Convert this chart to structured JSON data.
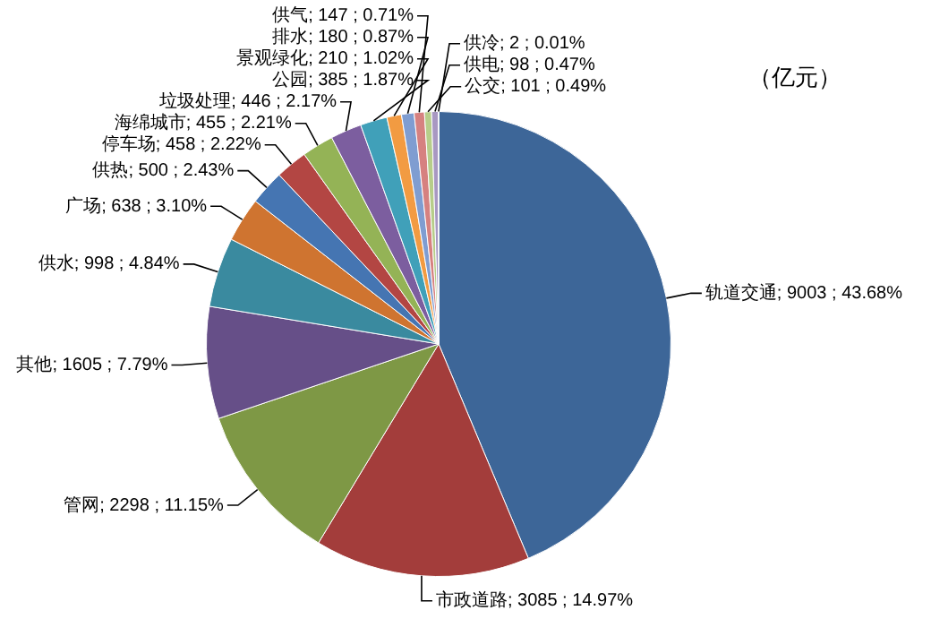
{
  "chart_data": {
    "type": "pie",
    "categories": [
      "轨道交通",
      "市政道路",
      "管网",
      "其他",
      "供水",
      "广场",
      "供热",
      "停车场",
      "海绵城市",
      "垃圾处理",
      "公园",
      "景观绿化",
      "排水",
      "供气",
      "公交",
      "供电",
      "供冷"
    ],
    "values": [
      9003,
      3085,
      2298,
      1605,
      998,
      638,
      500,
      458,
      455,
      446,
      385,
      210,
      180,
      147,
      101,
      98,
      2
    ],
    "value_labels": [
      "9003 ; 43.68%",
      "3085 ; 14.97%",
      "2298 ; 11.15%",
      "1605 ; 7.79%",
      "998 ; 4.84%",
      "638 ; 3.10%",
      "500 ; 2.43%",
      "458 ; 2.22%",
      "455 ; 2.21%",
      "446 ; 2.17%",
      "385 ; 1.87%",
      "210 ; 1.02%",
      "180 ; 0.87%",
      "147 ; 0.71%",
      "101 ; 0.49%",
      "98 ; 0.47%",
      "2 ; 0.01%"
    ],
    "colors": [
      "#3d6698",
      "#a33d3b",
      "#7e9845",
      "#664f88",
      "#3a8a9f",
      "#cf7430",
      "#4575b2",
      "#b34643",
      "#94b356",
      "#7c5e9f",
      "#40a0b9",
      "#f29b42",
      "#7f9dd1",
      "#d68180",
      "#b7cd8a",
      "#a898c2",
      "#80c6d8"
    ],
    "annotations": [
      "（亿元）"
    ],
    "legend": false
  }
}
